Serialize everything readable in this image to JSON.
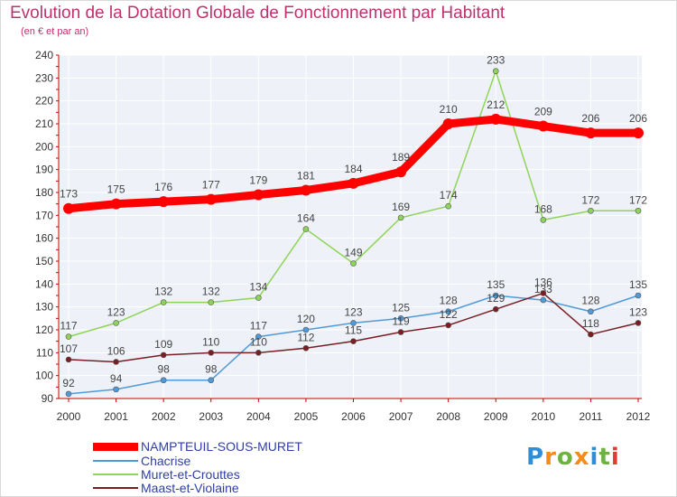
{
  "title": "Evolution de la Dotation Globale de Fonctionnement par Habitant",
  "subtitle": "(en € et par an)",
  "logo": {
    "text": "Proxiti",
    "letter_colors": [
      "#2e8fd6",
      "#f28c1a",
      "#6db33f",
      "#f28c1a",
      "#2e8fd6",
      "#6db33f",
      "#e23b2e"
    ]
  },
  "chart_data": {
    "type": "line",
    "title": "Evolution de la Dotation Globale de Fonctionnement par Habitant",
    "subtitle": "(en € et par an)",
    "xlabel": "",
    "ylabel": "",
    "x": [
      "2000",
      "2001",
      "2002",
      "2003",
      "2004",
      "2005",
      "2006",
      "2007",
      "2008",
      "2009",
      "2010",
      "2011",
      "2012"
    ],
    "ylim": [
      90,
      240
    ],
    "yticks": [
      90,
      100,
      110,
      120,
      130,
      140,
      150,
      160,
      170,
      180,
      190,
      200,
      210,
      220,
      230,
      240
    ],
    "grid": true,
    "legend": "bottom-left",
    "series": [
      {
        "name": "NAMPTEUIL-SOUS-MURET",
        "color": "#ff0000",
        "values": [
          173,
          175,
          176,
          177,
          179,
          181,
          184,
          189,
          210,
          212,
          209,
          206,
          206
        ]
      },
      {
        "name": "Chacrise",
        "color": "#4f9bd9",
        "values": [
          92,
          94,
          98,
          98,
          117,
          120,
          123,
          125,
          128,
          135,
          133,
          128,
          135
        ]
      },
      {
        "name": "Muret-et-Crouttes",
        "color": "#8fd45a",
        "values": [
          117,
          123,
          132,
          132,
          134,
          164,
          149,
          169,
          174,
          233,
          168,
          172,
          172
        ]
      },
      {
        "name": "Maast-et-Violaine",
        "color": "#7a1e24",
        "values": [
          107,
          106,
          109,
          110,
          110,
          112,
          115,
          119,
          122,
          129,
          136,
          118,
          123
        ]
      }
    ]
  }
}
